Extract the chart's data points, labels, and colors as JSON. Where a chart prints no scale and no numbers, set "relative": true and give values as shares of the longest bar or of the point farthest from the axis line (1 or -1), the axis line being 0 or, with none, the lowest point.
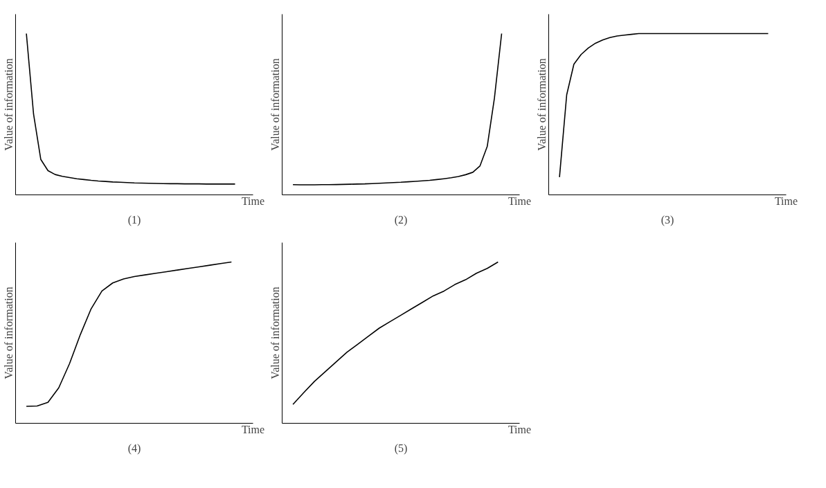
{
  "chart_data": [
    {
      "type": "line",
      "relative": true,
      "title": "(1)",
      "xlabel": "Time",
      "ylabel": "Value of information",
      "categories": [
        null,
        null,
        null,
        null,
        null,
        null,
        null,
        null,
        null,
        null,
        null,
        null,
        null,
        null,
        null,
        null,
        null,
        null,
        null,
        null,
        null,
        null,
        null,
        null,
        null,
        null,
        null,
        null,
        null,
        null
      ],
      "series": [
        {
          "color": "#000000",
          "values": [
            1.0,
            0.5,
            0.22,
            0.15,
            0.126,
            0.115,
            0.107,
            0.1,
            0.095,
            0.09,
            0.086,
            0.083,
            0.08,
            0.078,
            0.076,
            0.074,
            0.073,
            0.072,
            0.071,
            0.07,
            0.069,
            0.069,
            0.068,
            0.068,
            0.068,
            0.067,
            0.067,
            0.067,
            0.067,
            0.067
          ]
        }
      ]
    },
    {
      "type": "line",
      "relative": true,
      "title": "(2)",
      "xlabel": "Time",
      "ylabel": "Value of information",
      "categories": [
        null,
        null,
        null,
        null,
        null,
        null,
        null,
        null,
        null,
        null,
        null,
        null,
        null,
        null,
        null,
        null,
        null,
        null,
        null,
        null,
        null,
        null,
        null,
        null,
        null,
        null,
        null,
        null,
        null,
        null
      ],
      "series": [
        {
          "color": "#000000",
          "values": [
            0.063,
            0.062,
            0.062,
            0.062,
            0.063,
            0.063,
            0.064,
            0.065,
            0.066,
            0.067,
            0.068,
            0.07,
            0.072,
            0.074,
            0.076,
            0.078,
            0.081,
            0.084,
            0.087,
            0.09,
            0.095,
            0.1,
            0.106,
            0.114,
            0.125,
            0.14,
            0.18,
            0.3,
            0.6,
            1.0
          ]
        }
      ]
    },
    {
      "type": "line",
      "relative": true,
      "title": "(3)",
      "xlabel": "Time",
      "ylabel": "Value of information",
      "categories": [
        null,
        null,
        null,
        null,
        null,
        null,
        null,
        null,
        null,
        null,
        null,
        null,
        null,
        null,
        null,
        null,
        null,
        null,
        null,
        null,
        null,
        null,
        null,
        null,
        null,
        null,
        null,
        null,
        null,
        null
      ],
      "series": [
        {
          "color": "#000000",
          "values": [
            0.11,
            0.62,
            0.81,
            0.87,
            0.91,
            0.94,
            0.96,
            0.975,
            0.985,
            0.99,
            0.995,
            1.0,
            1.0,
            1.0,
            1.0,
            1.0,
            1.0,
            1.0,
            1.0,
            1.0,
            1.0,
            1.0,
            1.0,
            1.0,
            1.0,
            1.0,
            1.0,
            1.0,
            1.0,
            1.0
          ]
        }
      ]
    },
    {
      "type": "line",
      "relative": true,
      "title": "(4)",
      "xlabel": "Time",
      "ylabel": "Value of information",
      "categories": [
        null,
        null,
        null,
        null,
        null,
        null,
        null,
        null,
        null,
        null,
        null,
        null,
        null,
        null,
        null,
        null,
        null,
        null,
        null,
        null
      ],
      "series": [
        {
          "color": "#000000",
          "values": [
            0.105,
            0.107,
            0.13,
            0.22,
            0.37,
            0.55,
            0.71,
            0.82,
            0.87,
            0.895,
            0.91,
            0.92,
            0.93,
            0.94,
            0.95,
            0.96,
            0.97,
            0.98,
            0.99,
            1.0
          ]
        }
      ]
    },
    {
      "type": "line",
      "relative": true,
      "title": "(5)",
      "xlabel": "Time",
      "ylabel": "Value of information",
      "categories": [
        null,
        null,
        null,
        null,
        null,
        null,
        null,
        null,
        null,
        null,
        null,
        null,
        null,
        null,
        null,
        null,
        null,
        null,
        null,
        null
      ],
      "series": [
        {
          "color": "#000000",
          "values": [
            0.117,
            0.19,
            0.26,
            0.32,
            0.38,
            0.44,
            0.49,
            0.54,
            0.59,
            0.63,
            0.67,
            0.71,
            0.75,
            0.79,
            0.82,
            0.86,
            0.89,
            0.93,
            0.96,
            1.0
          ]
        }
      ]
    }
  ]
}
